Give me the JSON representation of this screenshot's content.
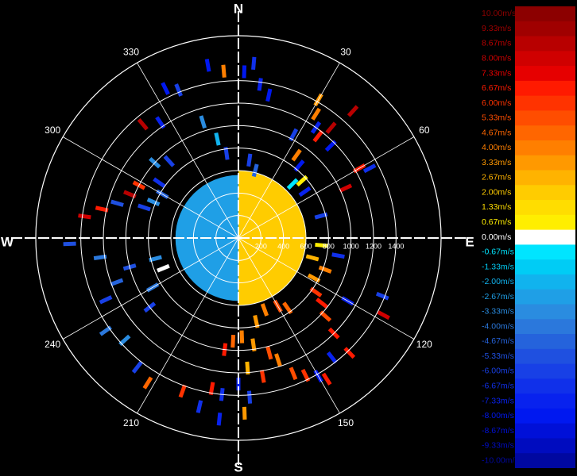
{
  "chart_data": {
    "type": "polar-heatmap",
    "title": "",
    "directions": {
      "north": "N",
      "east": "E",
      "south": "S",
      "west": "W"
    },
    "angle_ticks": [
      {
        "deg": 30,
        "label": "30"
      },
      {
        "deg": 60,
        "label": "60"
      },
      {
        "deg": 120,
        "label": "120"
      },
      {
        "deg": 150,
        "label": "150"
      },
      {
        "deg": 210,
        "label": "210"
      },
      {
        "deg": 240,
        "label": "240"
      },
      {
        "deg": 300,
        "label": "300"
      },
      {
        "deg": 330,
        "label": "330"
      }
    ],
    "radial_ticks": [
      {
        "value": 200,
        "label": "200"
      },
      {
        "value": 400,
        "label": "400"
      },
      {
        "value": 600,
        "label": "600"
      },
      {
        "value": 800,
        "label": "800"
      },
      {
        "value": 1000,
        "label": "1000"
      },
      {
        "value": 1200,
        "label": "1200"
      },
      {
        "value": 1400,
        "label": "1400"
      }
    ],
    "rmax": 1800,
    "grid": true,
    "colorbar": [
      {
        "label": "10.00m/s",
        "color": "#8c0000"
      },
      {
        "label": "9.33m/s",
        "color": "#a00000"
      },
      {
        "label": "8.67m/s",
        "color": "#b80000"
      },
      {
        "label": "8.00m/s",
        "color": "#d00000"
      },
      {
        "label": "7.33m/s",
        "color": "#e60000"
      },
      {
        "label": "6.67m/s",
        "color": "#ff1a00"
      },
      {
        "label": "6.00m/s",
        "color": "#ff3300"
      },
      {
        "label": "5.33m/s",
        "color": "#ff4d00"
      },
      {
        "label": "4.67m/s",
        "color": "#ff6600"
      },
      {
        "label": "4.00m/s",
        "color": "#ff7f00"
      },
      {
        "label": "3.33m/s",
        "color": "#ff9900"
      },
      {
        "label": "2.67m/s",
        "color": "#ffb300"
      },
      {
        "label": "2.00m/s",
        "color": "#ffcc00"
      },
      {
        "label": "1.33m/s",
        "color": "#ffdd00"
      },
      {
        "label": "0.67m/s",
        "color": "#ffee00"
      },
      {
        "label": "0.00m/s",
        "color": "#ffffff"
      },
      {
        "label": "-0.67m/s",
        "color": "#00e5ff"
      },
      {
        "label": "-1.33m/s",
        "color": "#00ccf5"
      },
      {
        "label": "-2.00m/s",
        "color": "#11b3ee"
      },
      {
        "label": "-2.67m/s",
        "color": "#1f9fe6"
      },
      {
        "label": "-3.33m/s",
        "color": "#2a8ce0"
      },
      {
        "label": "-4.00m/s",
        "color": "#2b78dc"
      },
      {
        "label": "-4.67m/s",
        "color": "#2563dc"
      },
      {
        "label": "-5.33m/s",
        "color": "#1f50e0"
      },
      {
        "label": "-6.00m/s",
        "color": "#1840e6"
      },
      {
        "label": "-6.67m/s",
        "color": "#1030ea"
      },
      {
        "label": "-7.33m/s",
        "color": "#0822ee"
      },
      {
        "label": "-8.00m/s",
        "color": "#0018f0"
      },
      {
        "label": "-8.67m/s",
        "color": "#0010d8"
      },
      {
        "label": "-9.33m/s",
        "color": "#000cbf"
      },
      {
        "label": "-10.00m/s",
        "color": "#0008a0"
      }
    ],
    "core": {
      "approaching_side": {
        "from_deg": 180,
        "to_deg": 360,
        "r_min": 0,
        "r_max": 560,
        "velocity": -2.67
      },
      "receding_side": {
        "from_deg": 0,
        "to_deg": 180,
        "r_min": 0,
        "r_max": 600,
        "velocity": 2.0
      }
    },
    "cells": [
      {
        "az": 2,
        "r": 1480,
        "v": -8.0
      },
      {
        "az": 5,
        "r": 1560,
        "v": -6.67
      },
      {
        "az": 355,
        "r": 1490,
        "v": 4.0
      },
      {
        "az": 350,
        "r": 1560,
        "v": -8.0
      },
      {
        "az": 338,
        "r": 1420,
        "v": -6.0
      },
      {
        "az": 8,
        "r": 1380,
        "v": -7.33
      },
      {
        "az": 12,
        "r": 1300,
        "v": -8.0
      },
      {
        "az": 30,
        "r": 1420,
        "v": 3.33
      },
      {
        "az": 32,
        "r": 1300,
        "v": 4.0
      },
      {
        "az": 35,
        "r": 1200,
        "v": -7.33
      },
      {
        "az": 38,
        "r": 1150,
        "v": 6.67
      },
      {
        "az": 40,
        "r": 1280,
        "v": 8.67
      },
      {
        "az": 45,
        "r": 1160,
        "v": -8.0
      },
      {
        "az": 42,
        "r": 1520,
        "v": 8.67
      },
      {
        "az": 28,
        "r": 1040,
        "v": -6.0
      },
      {
        "az": 35,
        "r": 900,
        "v": 4.0
      },
      {
        "az": 40,
        "r": 840,
        "v": -8.0
      },
      {
        "az": 48,
        "r": 760,
        "v": 0.67
      },
      {
        "az": 45,
        "r": 680,
        "v": -0.67
      },
      {
        "az": 55,
        "r": 720,
        "v": -7.33
      },
      {
        "az": 62,
        "r": 1320,
        "v": -6.67
      },
      {
        "az": 60,
        "r": 1240,
        "v": 6.67
      },
      {
        "az": 65,
        "r": 1050,
        "v": 8.0
      },
      {
        "az": 75,
        "r": 760,
        "v": -6.0
      },
      {
        "az": 95,
        "r": 740,
        "v": 0.67
      },
      {
        "az": 110,
        "r": 820,
        "v": 4.0
      },
      {
        "az": 118,
        "r": 760,
        "v": 3.33
      },
      {
        "az": 125,
        "r": 840,
        "v": 6.0
      },
      {
        "az": 128,
        "r": 940,
        "v": 6.67
      },
      {
        "az": 132,
        "r": 1040,
        "v": 5.33
      },
      {
        "az": 120,
        "r": 1120,
        "v": -7.33
      },
      {
        "az": 112,
        "r": 1380,
        "v": -6.0
      },
      {
        "az": 118,
        "r": 1460,
        "v": 8.0
      },
      {
        "az": 135,
        "r": 1200,
        "v": 6.67
      },
      {
        "az": 142,
        "r": 1350,
        "v": -7.33
      },
      {
        "az": 148,
        "r": 1480,
        "v": 6.67
      },
      {
        "az": 150,
        "r": 1420,
        "v": -8.0
      },
      {
        "az": 154,
        "r": 1360,
        "v": 6.0
      },
      {
        "az": 158,
        "r": 1300,
        "v": 5.33
      },
      {
        "az": 162,
        "r": 1140,
        "v": 4.0
      },
      {
        "az": 165,
        "r": 1060,
        "v": 5.33
      },
      {
        "az": 172,
        "r": 960,
        "v": 3.33
      },
      {
        "az": 178,
        "r": 880,
        "v": 4.0
      },
      {
        "az": 183,
        "r": 920,
        "v": 4.67
      },
      {
        "az": 187,
        "r": 1000,
        "v": 6.67
      },
      {
        "az": 176,
        "r": 1160,
        "v": 2.67
      },
      {
        "az": 170,
        "r": 1250,
        "v": 6.0
      },
      {
        "az": 180,
        "r": 1300,
        "v": -7.33
      },
      {
        "az": 176,
        "r": 1420,
        "v": -6.0
      },
      {
        "az": 186,
        "r": 1400,
        "v": -6.67
      },
      {
        "az": 190,
        "r": 1360,
        "v": 6.67
      },
      {
        "az": 178,
        "r": 1560,
        "v": 3.33
      },
      {
        "az": 186,
        "r": 1620,
        "v": -7.33
      },
      {
        "az": 193,
        "r": 1540,
        "v": -6.67
      },
      {
        "az": 200,
        "r": 1450,
        "v": 6.0
      },
      {
        "az": 212,
        "r": 1520,
        "v": 4.67
      },
      {
        "az": 218,
        "r": 1460,
        "v": -6.0
      },
      {
        "az": 228,
        "r": 1360,
        "v": -3.33
      },
      {
        "az": 235,
        "r": 1440,
        "v": -4.0
      },
      {
        "az": 245,
        "r": 1300,
        "v": -6.0
      },
      {
        "az": 250,
        "r": 1150,
        "v": -4.67
      },
      {
        "az": 255,
        "r": 1000,
        "v": -5.33
      },
      {
        "az": 232,
        "r": 1000,
        "v": -6.0
      },
      {
        "az": 240,
        "r": 880,
        "v": -4.0
      },
      {
        "az": 248,
        "r": 720,
        "v": 0.0
      },
      {
        "az": 256,
        "r": 760,
        "v": -3.33
      },
      {
        "az": 262,
        "r": 1240,
        "v": -4.0
      },
      {
        "az": 268,
        "r": 1500,
        "v": -5.33
      },
      {
        "az": 278,
        "r": 1380,
        "v": 8.0
      },
      {
        "az": 282,
        "r": 1240,
        "v": 6.67
      },
      {
        "az": 286,
        "r": 1120,
        "v": -5.33
      },
      {
        "az": 288,
        "r": 880,
        "v": -6.0
      },
      {
        "az": 293,
        "r": 820,
        "v": -3.33
      },
      {
        "az": 292,
        "r": 1040,
        "v": 8.67
      },
      {
        "az": 298,
        "r": 1000,
        "v": 6.0
      },
      {
        "az": 300,
        "r": 780,
        "v": -4.67
      },
      {
        "az": 305,
        "r": 860,
        "v": -6.67
      },
      {
        "az": 312,
        "r": 1000,
        "v": -3.33
      },
      {
        "az": 318,
        "r": 920,
        "v": -6.0
      },
      {
        "az": 320,
        "r": 1320,
        "v": 8.67
      },
      {
        "az": 326,
        "r": 1240,
        "v": -7.33
      },
      {
        "az": 334,
        "r": 1480,
        "v": -8.0
      },
      {
        "az": 343,
        "r": 1080,
        "v": -3.33
      },
      {
        "az": 348,
        "r": 900,
        "v": -2.0
      },
      {
        "az": 352,
        "r": 760,
        "v": -6.0
      },
      {
        "az": 8,
        "r": 700,
        "v": -6.0
      },
      {
        "az": 14,
        "r": 620,
        "v": -4.67
      },
      {
        "az": 145,
        "r": 760,
        "v": 4.67
      },
      {
        "az": 150,
        "r": 700,
        "v": 5.33
      },
      {
        "az": 160,
        "r": 680,
        "v": 4.0
      },
      {
        "az": 168,
        "r": 760,
        "v": 3.33
      },
      {
        "az": 105,
        "r": 680,
        "v": 2.67
      },
      {
        "az": 100,
        "r": 900,
        "v": -6.67
      },
      {
        "az": 136,
        "r": 1420,
        "v": 6.67
      }
    ]
  }
}
